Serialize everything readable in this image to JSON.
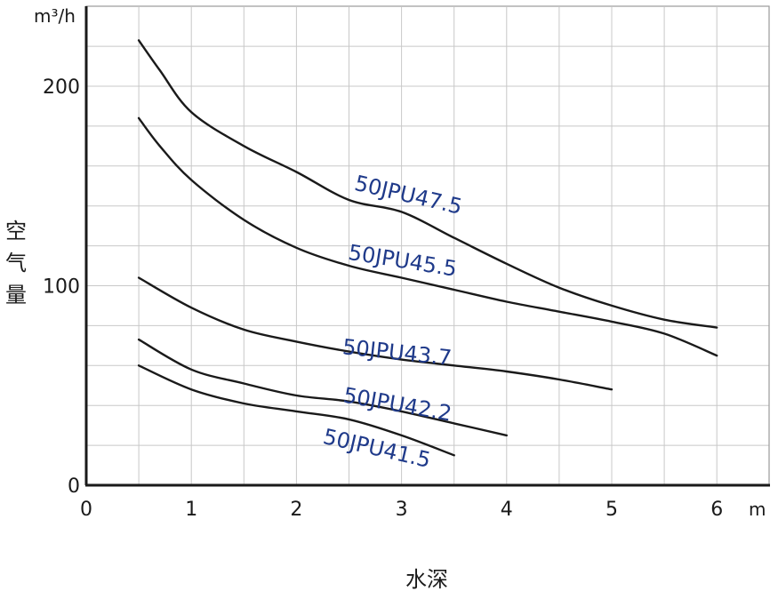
{
  "chart_data": {
    "type": "line",
    "title": "",
    "xlabel": "水深",
    "ylabel": "空气量",
    "x_unit": "m",
    "y_unit": "m³/h",
    "xlim": [
      0,
      6.5
    ],
    "ylim": [
      0,
      240
    ],
    "x_ticks": [
      0,
      1,
      2,
      3,
      4,
      5,
      6
    ],
    "y_ticks": [
      0,
      100,
      200
    ],
    "grid": true,
    "series": [
      {
        "name": "50JPU47.5",
        "label_at": [
          3.05,
          142
        ],
        "label_rotate": 13,
        "x": [
          0.5,
          0.7,
          1.0,
          1.5,
          2.0,
          2.5,
          3.0,
          3.5,
          4.0,
          4.5,
          5.0,
          5.5,
          6.0
        ],
        "y": [
          223,
          208,
          187,
          170,
          157,
          143,
          137,
          124,
          111,
          99,
          90,
          83,
          79
        ]
      },
      {
        "name": "50JPU45.5",
        "label_at": [
          3.0,
          109
        ],
        "label_rotate": 9,
        "x": [
          0.5,
          0.7,
          1.0,
          1.5,
          2.0,
          2.5,
          3.0,
          3.5,
          4.0,
          4.5,
          5.0,
          5.5,
          6.0
        ],
        "y": [
          184,
          170,
          153,
          133,
          119,
          110,
          104,
          98,
          92,
          87,
          82,
          76,
          65
        ]
      },
      {
        "name": "50JPU43.7",
        "label_at": [
          2.95,
          63
        ],
        "label_rotate": 6,
        "x": [
          0.5,
          1.0,
          1.5,
          2.0,
          2.5,
          3.0,
          3.5,
          4.0,
          4.5,
          5.0
        ],
        "y": [
          104,
          89,
          78,
          72,
          67,
          63,
          60,
          57,
          53,
          48
        ]
      },
      {
        "name": "50JPU42.2",
        "label_at": [
          2.95,
          37
        ],
        "label_rotate": 10,
        "x": [
          0.5,
          1.0,
          1.5,
          2.0,
          2.5,
          3.0,
          3.5,
          4.0
        ],
        "y": [
          73,
          58,
          51,
          45,
          42,
          37,
          31,
          25
        ]
      },
      {
        "name": "50JPU41.5",
        "label_at": [
          2.75,
          15
        ],
        "label_rotate": 13,
        "x": [
          0.5,
          1.0,
          1.5,
          2.0,
          2.5,
          3.0,
          3.5
        ],
        "y": [
          60,
          48,
          41,
          37,
          33,
          25,
          15
        ]
      }
    ]
  }
}
